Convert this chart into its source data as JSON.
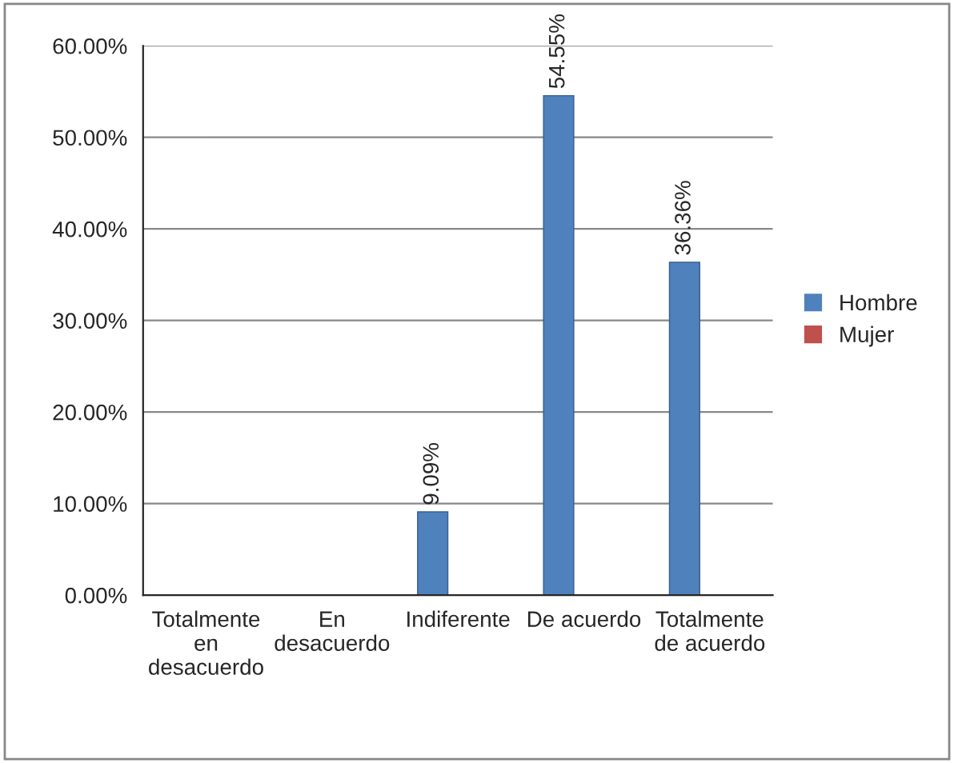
{
  "chart_data": {
    "type": "bar",
    "categories": [
      "Totalmente\nen\ndesacuerdo",
      "En\ndesacuerdo",
      "Indiferente",
      "De acuerdo",
      "Totalmente\nde acuerdo"
    ],
    "series": [
      {
        "name": "Hombre",
        "color": "#4f81bd",
        "values": [
          null,
          null,
          9.09,
          54.55,
          36.36
        ],
        "value_labels": [
          null,
          null,
          "9.09%",
          "54.55%",
          "36.36%"
        ]
      },
      {
        "name": "Mujer",
        "color": "#c0504d",
        "values": [
          null,
          null,
          null,
          null,
          null
        ]
      }
    ],
    "ylim": [
      0,
      60
    ],
    "yticks": [
      {
        "value": 0,
        "label": "0.00%"
      },
      {
        "value": 10,
        "label": "10.00%"
      },
      {
        "value": 20,
        "label": "20.00%"
      },
      {
        "value": 30,
        "label": "30.00%"
      },
      {
        "value": 40,
        "label": "40.00%"
      },
      {
        "value": 50,
        "label": "50.00%"
      },
      {
        "value": 60,
        "label": "60.00%"
      }
    ],
    "grid": "y",
    "legend": "right"
  }
}
